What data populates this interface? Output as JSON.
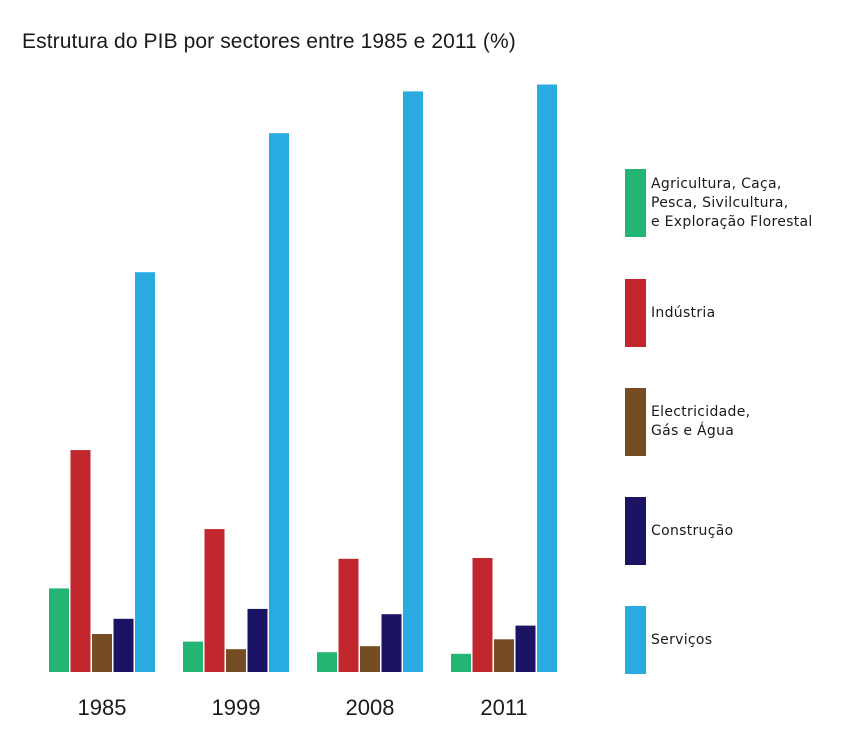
{
  "title": "Estrutura do PIB por sectores entre 1985 e 2011 (%)",
  "legend": [
    {
      "label": "Agricultura, Caça,\nPesca, Sivilcultura,\ne Exploração Florestal",
      "color": "#22b573"
    },
    {
      "label": "Indústria",
      "color": "#c1272d"
    },
    {
      "label": "Electricidade,\nGás e Água",
      "color": "#754c24"
    },
    {
      "label": "Construção",
      "color": "#1b1464"
    },
    {
      "label": "Serviços",
      "color": "#29abe2"
    }
  ],
  "chart_data": {
    "type": "bar",
    "title": "Estrutura do PIB por sectores entre 1985 e 2011 (%)",
    "categories": [
      "1985",
      "1999",
      "2008",
      "2011"
    ],
    "series": [
      {
        "name": "Agricultura, Caça, Pesca, Sivilcultura, e Exploração Florestal",
        "color": "#22b573",
        "values": [
          11.0,
          4.0,
          2.6,
          2.4
        ]
      },
      {
        "name": "Indústria",
        "color": "#c1272d",
        "values": [
          29.2,
          18.8,
          14.9,
          15.0
        ]
      },
      {
        "name": "Electricidade, Gás e Água",
        "color": "#754c24",
        "values": [
          5.0,
          3.0,
          3.4,
          4.3
        ]
      },
      {
        "name": "Construção",
        "color": "#1b1464",
        "values": [
          7.0,
          8.3,
          7.6,
          6.1
        ]
      },
      {
        "name": "Serviços",
        "color": "#29abe2",
        "values": [
          52.6,
          70.9,
          76.4,
          77.3
        ]
      }
    ],
    "ylim": [
      0,
      80
    ],
    "grid": false,
    "legend_position": "right"
  }
}
